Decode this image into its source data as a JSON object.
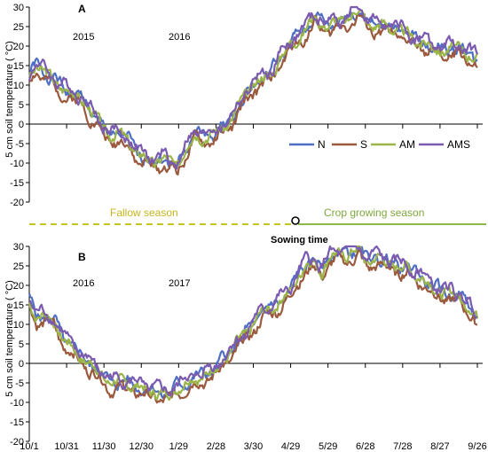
{
  "figure": {
    "legend": [
      "N",
      "S",
      "AM",
      "AMS"
    ],
    "fallow_label": "Fallow season",
    "crop_label": "Crop growing season",
    "sowing_label": "Sowing time",
    "x_tick_labels": [
      "10/1",
      "10/31",
      "11/30",
      "12/30",
      "1/29",
      "2/28",
      "3/30",
      "4/29",
      "5/29",
      "6/28",
      "7/28",
      "8/27",
      "9/26"
    ]
  },
  "chart_data": [
    {
      "type": "line",
      "panel_label": "A",
      "ylabel": "5 cm soil temperature ( °C)",
      "year_labels": [
        "2015",
        "2016"
      ],
      "ylim": [
        -20,
        30
      ],
      "y_ticks": [
        -20,
        -15,
        -10,
        -5,
        0,
        5,
        10,
        15,
        20,
        25,
        30
      ],
      "x_domain": [
        0,
        365
      ],
      "anchors": [
        [
          0,
          12
        ],
        [
          6,
          15
        ],
        [
          12,
          13
        ],
        [
          20,
          11
        ],
        [
          28,
          9
        ],
        [
          38,
          7
        ],
        [
          45,
          6
        ],
        [
          52,
          2
        ],
        [
          60,
          -1
        ],
        [
          66,
          -3
        ],
        [
          73,
          -3
        ],
        [
          80,
          -4
        ],
        [
          88,
          -8
        ],
        [
          95,
          -9
        ],
        [
          102,
          -10
        ],
        [
          108,
          -9
        ],
        [
          115,
          -10
        ],
        [
          120,
          -11
        ],
        [
          128,
          -6
        ],
        [
          135,
          -3
        ],
        [
          142,
          -3
        ],
        [
          150,
          -3
        ],
        [
          158,
          -1
        ],
        [
          165,
          1
        ],
        [
          172,
          5
        ],
        [
          180,
          9
        ],
        [
          188,
          11
        ],
        [
          195,
          12
        ],
        [
          205,
          17
        ],
        [
          212,
          20
        ],
        [
          218,
          22
        ],
        [
          225,
          24
        ],
        [
          232,
          27
        ],
        [
          238,
          26
        ],
        [
          245,
          25
        ],
        [
          252,
          26
        ],
        [
          260,
          27
        ],
        [
          268,
          29
        ],
        [
          275,
          26
        ],
        [
          282,
          25
        ],
        [
          290,
          25
        ],
        [
          300,
          24
        ],
        [
          310,
          22
        ],
        [
          320,
          21
        ],
        [
          330,
          19
        ],
        [
          340,
          19
        ],
        [
          350,
          19
        ],
        [
          358,
          18
        ],
        [
          365,
          16
        ]
      ],
      "series": [
        {
          "name": "N",
          "color": "#4f6fc4",
          "offset": 0.4,
          "amp": 0.9,
          "phase": 0.5,
          "seed": 1
        },
        {
          "name": "S",
          "color": "#9b5a3e",
          "offset": -1.4,
          "amp": 1.0,
          "phase": 1.7,
          "seed": 2
        },
        {
          "name": "AM",
          "color": "#9bb548",
          "offset": 0.2,
          "amp": 0.9,
          "phase": 2.9,
          "seed": 3
        },
        {
          "name": "AMS",
          "color": "#7b5bb0",
          "offset": 1.0,
          "amp": 1.1,
          "phase": 4.1,
          "seed": 4
        }
      ]
    },
    {
      "type": "line",
      "panel_label": "B",
      "ylabel": "5 cm soil temperature ( °C)",
      "year_labels": [
        "2016",
        "2017"
      ],
      "ylim": [
        -20,
        30
      ],
      "y_ticks": [
        -20,
        -15,
        -10,
        -5,
        0,
        5,
        10,
        15,
        20,
        25,
        30
      ],
      "x_domain": [
        0,
        365
      ],
      "anchors": [
        [
          0,
          16
        ],
        [
          6,
          12
        ],
        [
          12,
          12
        ],
        [
          20,
          11
        ],
        [
          28,
          6
        ],
        [
          38,
          3
        ],
        [
          45,
          1
        ],
        [
          52,
          -1
        ],
        [
          60,
          -3
        ],
        [
          66,
          -5
        ],
        [
          73,
          -5
        ],
        [
          80,
          -5
        ],
        [
          88,
          -6
        ],
        [
          95,
          -7
        ],
        [
          102,
          -7
        ],
        [
          108,
          -8
        ],
        [
          115,
          -8
        ],
        [
          120,
          -6
        ],
        [
          128,
          -5
        ],
        [
          135,
          -4
        ],
        [
          142,
          -3
        ],
        [
          150,
          -2
        ],
        [
          158,
          1
        ],
        [
          165,
          3
        ],
        [
          172,
          6
        ],
        [
          180,
          9
        ],
        [
          188,
          12
        ],
        [
          195,
          14
        ],
        [
          205,
          16
        ],
        [
          212,
          18
        ],
        [
          218,
          22
        ],
        [
          225,
          25
        ],
        [
          232,
          26
        ],
        [
          238,
          24
        ],
        [
          245,
          27
        ],
        [
          252,
          28
        ],
        [
          260,
          28
        ],
        [
          268,
          29
        ],
        [
          275,
          26
        ],
        [
          282,
          27
        ],
        [
          290,
          26
        ],
        [
          300,
          25
        ],
        [
          310,
          24
        ],
        [
          320,
          22
        ],
        [
          330,
          19
        ],
        [
          340,
          18
        ],
        [
          350,
          17
        ],
        [
          358,
          15
        ],
        [
          365,
          11
        ]
      ],
      "series": [
        {
          "name": "N",
          "color": "#4f6fc4",
          "offset": 0.3,
          "amp": 0.9,
          "phase": 0.9,
          "seed": 5
        },
        {
          "name": "S",
          "color": "#9b5a3e",
          "offset": -1.5,
          "amp": 1.0,
          "phase": 2.2,
          "seed": 6
        },
        {
          "name": "AM",
          "color": "#9bb548",
          "offset": 0.0,
          "amp": 0.9,
          "phase": 3.4,
          "seed": 7
        },
        {
          "name": "AMS",
          "color": "#7b5bb0",
          "offset": 0.9,
          "amp": 1.1,
          "phase": 4.6,
          "seed": 8
        }
      ]
    }
  ]
}
